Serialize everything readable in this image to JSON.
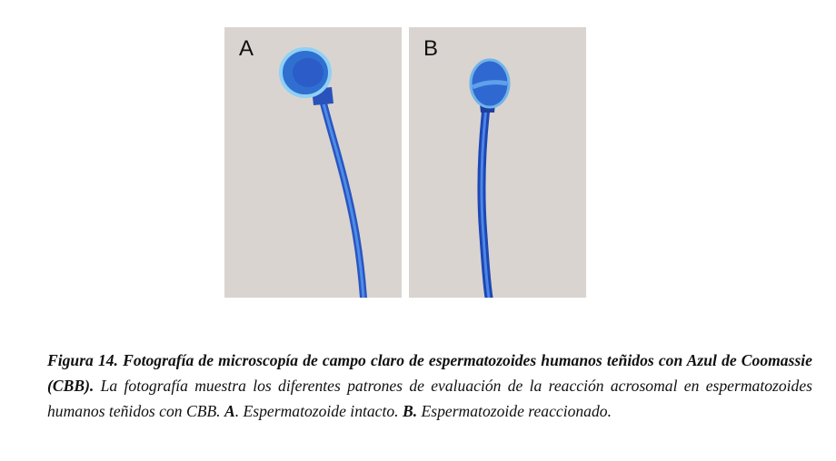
{
  "figure": {
    "panels": [
      {
        "label": "A",
        "description_icon": "intact-sperm"
      },
      {
        "label": "B",
        "description_icon": "reacted-sperm"
      }
    ],
    "caption": {
      "title": "Figura 14. Fotografía de microscopía de campo claro de espermatozoides humanos teñidos con Azul de Coomassie (CBB).",
      "body_1": " La fotografía muestra los diferentes patrones de evaluación de la reacción acrosomal en espermatozoides humanos teñidos con CBB. ",
      "label_a": "A",
      "text_a": ". Espermatozoide intacto. ",
      "label_b": "B.",
      "text_b": " Espermatozoide reaccionado."
    }
  },
  "colors": {
    "panel_bg": "#d9d4d0",
    "stain": "#2f6fd0",
    "stain_dark": "#1d3fa8"
  }
}
